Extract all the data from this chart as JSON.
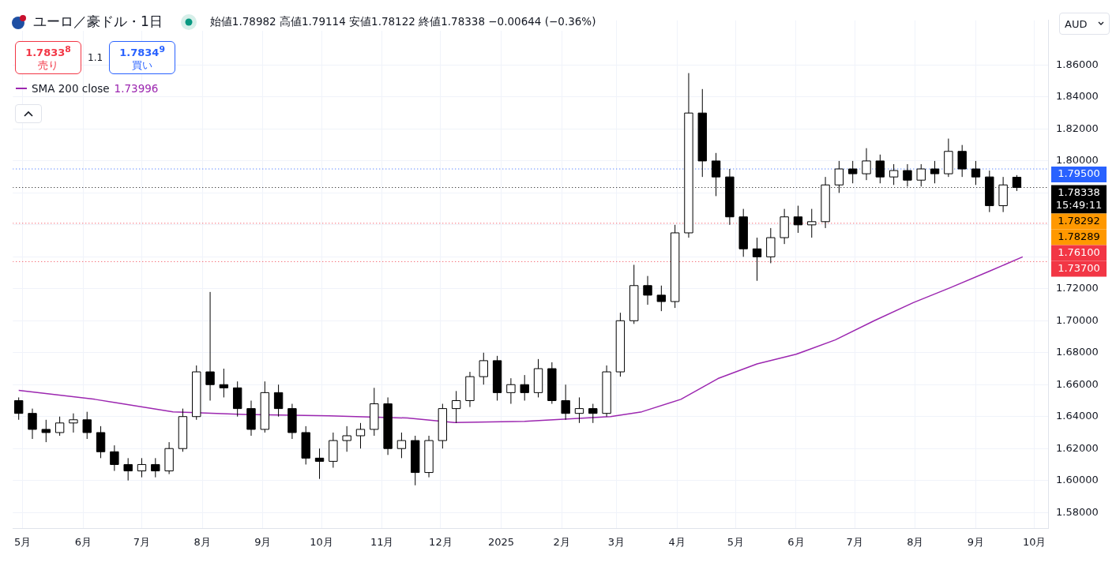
{
  "chart_data": {
    "type": "candlestick",
    "title": "ユーロ／豪ドル・1日",
    "subtitle": "始値1.78982  高値1.79114  安値1.78122  終値1.78338  −0.00644 (−0.36%)",
    "annotations": [
      "1.7833$^{8}$",
      "売り",
      "1.1",
      "1.7834$^{9}$",
      "買い",
      "AUD",
      "1.73996",
      "1.78292",
      "1.78289"
    ],
    "legend": "top left",
    "grid": true,
    "xlim": [
      "2024-04-26",
      "2025-10-08"
    ],
    "xticks": [
      {
        "value": "2024-05-01",
        "label": "5月"
      },
      {
        "value": "2024-06-01",
        "label": "6月"
      },
      {
        "value": "2024-07-01",
        "label": "7月"
      },
      {
        "value": "2024-08-01",
        "label": "8月"
      },
      {
        "value": "2024-09-01",
        "label": "9月"
      },
      {
        "value": "2024-10-01",
        "label": "10月"
      },
      {
        "value": "2024-11-01",
        "label": "11月"
      },
      {
        "value": "2024-12-01",
        "label": "12月"
      },
      {
        "value": "2025-01-01",
        "label": "2025"
      },
      {
        "value": "2025-02-01",
        "label": "2月"
      },
      {
        "value": "2025-03-01",
        "label": "3月"
      },
      {
        "value": "2025-04-01",
        "label": "4月"
      },
      {
        "value": "2025-05-01",
        "label": "5月"
      },
      {
        "value": "2025-06-01",
        "label": "6月"
      },
      {
        "value": "2025-07-01",
        "label": "7月"
      },
      {
        "value": "2025-08-01",
        "label": "8月"
      },
      {
        "value": "2025-09-01",
        "label": "9月"
      },
      {
        "value": "2025-10-01",
        "label": "10月"
      }
    ],
    "ylim": [
      1.57,
      1.888
    ],
    "yticks": [
      {
        "value": 1.58,
        "label": "1.58000"
      },
      {
        "value": 1.6,
        "label": "1.60000"
      },
      {
        "value": 1.62,
        "label": "1.62000"
      },
      {
        "value": 1.64,
        "label": "1.64000"
      },
      {
        "value": 1.66,
        "label": "1.66000"
      },
      {
        "value": 1.68,
        "label": "1.68000"
      },
      {
        "value": 1.7,
        "label": "1.70000"
      },
      {
        "value": 1.72,
        "label": "1.72000"
      },
      {
        "value": 1.74,
        "label": null
      },
      {
        "value": 1.76,
        "label": null
      },
      {
        "value": 1.78,
        "label": null
      },
      {
        "value": 1.8,
        "label": "1.80000"
      },
      {
        "value": 1.82,
        "label": "1.82000"
      },
      {
        "value": 1.84,
        "label": "1.84000"
      },
      {
        "value": 1.86,
        "label": "1.86000"
      }
    ],
    "ref_lines": [
      {
        "axis": "y",
        "value": 1.795,
        "label": "1.79500",
        "color": "#2962ff",
        "line_style": "dotted"
      },
      {
        "axis": "y",
        "value": 1.78338,
        "label": "1.78338\n15:49:11",
        "color": "#000000",
        "line_style": "dotted"
      },
      {
        "axis": "y",
        "value": 1.761,
        "label": "1.76100",
        "color": "#f23645",
        "line_style": "dotted"
      },
      {
        "axis": "y",
        "value": 1.737,
        "label": "1.73700",
        "color": "#f23645",
        "line_style": "dotted"
      }
    ],
    "x": [
      "2024-04-29",
      "2024-05-06",
      "2024-05-13",
      "2024-05-20",
      "2024-05-27",
      "2024-06-03",
      "2024-06-10",
      "2024-06-17",
      "2024-06-24",
      "2024-07-01",
      "2024-07-08",
      "2024-07-15",
      "2024-07-22",
      "2024-07-29",
      "2024-08-05",
      "2024-08-12",
      "2024-08-19",
      "2024-08-26",
      "2024-09-02",
      "2024-09-09",
      "2024-09-16",
      "2024-09-23",
      "2024-09-30",
      "2024-10-07",
      "2024-10-14",
      "2024-10-21",
      "2024-10-28",
      "2024-11-04",
      "2024-11-11",
      "2024-11-18",
      "2024-11-25",
      "2024-12-02",
      "2024-12-09",
      "2024-12-16",
      "2024-12-23",
      "2024-12-30",
      "2025-01-06",
      "2025-01-13",
      "2025-01-20",
      "2025-01-27",
      "2025-02-03",
      "2025-02-10",
      "2025-02-17",
      "2025-02-24",
      "2025-03-03",
      "2025-03-10",
      "2025-03-17",
      "2025-03-24",
      "2025-03-31",
      "2025-04-07",
      "2025-04-14",
      "2025-04-21",
      "2025-04-28",
      "2025-05-05",
      "2025-05-12",
      "2025-05-19",
      "2025-05-26",
      "2025-06-02",
      "2025-06-09",
      "2025-06-16",
      "2025-06-23",
      "2025-06-30",
      "2025-07-07",
      "2025-07-14",
      "2025-07-21",
      "2025-07-28",
      "2025-08-04",
      "2025-08-11",
      "2025-08-18",
      "2025-08-25",
      "2025-09-01",
      "2025-09-08",
      "2025-09-15",
      "2025-09-22"
    ],
    "ohlc": [
      [
        1.65,
        1.652,
        1.638,
        1.642
      ],
      [
        1.642,
        1.645,
        1.626,
        1.632
      ],
      [
        1.632,
        1.638,
        1.624,
        1.63
      ],
      [
        1.63,
        1.64,
        1.628,
        1.636
      ],
      [
        1.636,
        1.642,
        1.63,
        1.638
      ],
      [
        1.638,
        1.643,
        1.626,
        1.63
      ],
      [
        1.63,
        1.634,
        1.614,
        1.618
      ],
      [
        1.618,
        1.622,
        1.606,
        1.61
      ],
      [
        1.61,
        1.614,
        1.6,
        1.606
      ],
      [
        1.606,
        1.614,
        1.602,
        1.61
      ],
      [
        1.61,
        1.614,
        1.602,
        1.606
      ],
      [
        1.606,
        1.624,
        1.604,
        1.62
      ],
      [
        1.62,
        1.645,
        1.618,
        1.64
      ],
      [
        1.64,
        1.672,
        1.638,
        1.668
      ],
      [
        1.668,
        1.718,
        1.65,
        1.66
      ],
      [
        1.66,
        1.67,
        1.652,
        1.658
      ],
      [
        1.658,
        1.662,
        1.64,
        1.645
      ],
      [
        1.645,
        1.65,
        1.628,
        1.632
      ],
      [
        1.632,
        1.662,
        1.63,
        1.655
      ],
      [
        1.655,
        1.66,
        1.64,
        1.645
      ],
      [
        1.645,
        1.648,
        1.626,
        1.63
      ],
      [
        1.63,
        1.634,
        1.61,
        1.614
      ],
      [
        1.614,
        1.62,
        1.601,
        1.612
      ],
      [
        1.612,
        1.63,
        1.608,
        1.625
      ],
      [
        1.625,
        1.634,
        1.618,
        1.628
      ],
      [
        1.628,
        1.636,
        1.62,
        1.632
      ],
      [
        1.632,
        1.658,
        1.628,
        1.648
      ],
      [
        1.648,
        1.652,
        1.616,
        1.62
      ],
      [
        1.62,
        1.63,
        1.614,
        1.625
      ],
      [
        1.625,
        1.628,
        1.597,
        1.605
      ],
      [
        1.605,
        1.628,
        1.602,
        1.625
      ],
      [
        1.625,
        1.648,
        1.62,
        1.645
      ],
      [
        1.645,
        1.656,
        1.636,
        1.65
      ],
      [
        1.65,
        1.668,
        1.646,
        1.665
      ],
      [
        1.665,
        1.68,
        1.66,
        1.675
      ],
      [
        1.675,
        1.678,
        1.65,
        1.655
      ],
      [
        1.655,
        1.664,
        1.648,
        1.66
      ],
      [
        1.66,
        1.666,
        1.65,
        1.655
      ],
      [
        1.655,
        1.676,
        1.652,
        1.67
      ],
      [
        1.67,
        1.674,
        1.648,
        1.65
      ],
      [
        1.65,
        1.66,
        1.638,
        1.642
      ],
      [
        1.642,
        1.652,
        1.636,
        1.645
      ],
      [
        1.645,
        1.648,
        1.636,
        1.642
      ],
      [
        1.642,
        1.672,
        1.64,
        1.668
      ],
      [
        1.668,
        1.705,
        1.665,
        1.7
      ],
      [
        1.7,
        1.735,
        1.698,
        1.722
      ],
      [
        1.722,
        1.728,
        1.71,
        1.716
      ],
      [
        1.716,
        1.722,
        1.706,
        1.712
      ],
      [
        1.712,
        1.76,
        1.708,
        1.755
      ],
      [
        1.755,
        1.855,
        1.752,
        1.83
      ],
      [
        1.83,
        1.845,
        1.79,
        1.8
      ],
      [
        1.8,
        1.805,
        1.778,
        1.79
      ],
      [
        1.79,
        1.795,
        1.76,
        1.765
      ],
      [
        1.765,
        1.77,
        1.74,
        1.745
      ],
      [
        1.745,
        1.752,
        1.725,
        1.74
      ],
      [
        1.74,
        1.758,
        1.736,
        1.752
      ],
      [
        1.752,
        1.77,
        1.748,
        1.765
      ],
      [
        1.765,
        1.772,
        1.755,
        1.76
      ],
      [
        1.76,
        1.77,
        1.752,
        1.762
      ],
      [
        1.762,
        1.79,
        1.758,
        1.785
      ],
      [
        1.785,
        1.8,
        1.78,
        1.795
      ],
      [
        1.795,
        1.8,
        1.786,
        1.792
      ],
      [
        1.792,
        1.808,
        1.788,
        1.8
      ],
      [
        1.8,
        1.804,
        1.786,
        1.79
      ],
      [
        1.79,
        1.798,
        1.785,
        1.794
      ],
      [
        1.794,
        1.798,
        1.784,
        1.788
      ],
      [
        1.788,
        1.798,
        1.784,
        1.795
      ],
      [
        1.795,
        1.8,
        1.786,
        1.792
      ],
      [
        1.792,
        1.814,
        1.79,
        1.806
      ],
      [
        1.806,
        1.81,
        1.79,
        1.795
      ],
      [
        1.795,
        1.8,
        1.785,
        1.79
      ],
      [
        1.79,
        1.794,
        1.768,
        1.772
      ],
      [
        1.772,
        1.79,
        1.768,
        1.785
      ],
      [
        1.78982,
        1.79114,
        1.78122,
        1.78338
      ]
    ],
    "series": [
      {
        "name": "SMA 200 close",
        "type": "line",
        "color": "#9c27b0",
        "x": [
          "2024-04-29",
          "2024-06-07",
          "2024-07-17",
          "2024-08-22",
          "2024-10-05",
          "2024-11-14",
          "2024-12-08",
          "2025-01-13",
          "2025-02-26",
          "2025-03-14",
          "2025-04-03",
          "2025-04-22",
          "2025-05-12",
          "2025-06-01",
          "2025-06-21",
          "2025-07-11",
          "2025-07-31",
          "2025-08-19",
          "2025-09-08",
          "2025-09-25"
        ],
        "values": [
          1.6564,
          1.6508,
          1.643,
          1.6414,
          1.6405,
          1.6391,
          1.6363,
          1.637,
          1.64,
          1.643,
          1.6508,
          1.6638,
          1.673,
          1.679,
          1.688,
          1.7,
          1.7113,
          1.7207,
          1.731,
          1.74
        ]
      }
    ]
  }
}
